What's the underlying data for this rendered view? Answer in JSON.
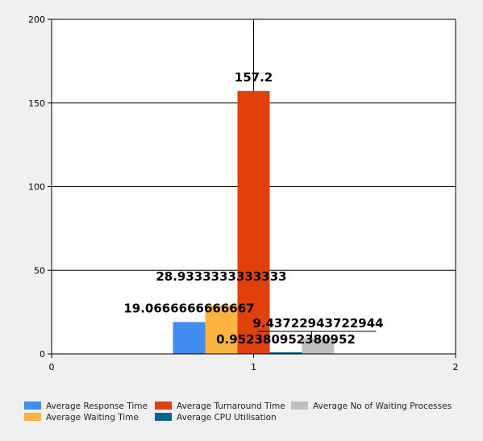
{
  "chart_data": {
    "type": "bar",
    "x_axis": {
      "min": 0,
      "max": 2,
      "ticks": [
        0,
        1,
        2
      ],
      "tick_labels": [
        "0",
        "1",
        "2"
      ]
    },
    "y_axis": {
      "min": 0,
      "max": 200,
      "ticks": [
        0,
        50,
        100,
        150,
        200
      ],
      "tick_labels": [
        "0",
        "50",
        "100",
        "150",
        "200"
      ]
    },
    "grid": true,
    "legend_position": "bottom",
    "group_x": 1,
    "series": [
      {
        "name": "Average Response Time",
        "value": 19.0666666666667,
        "label": "19.0666666666667",
        "color": "#418CF0"
      },
      {
        "name": "Average Waiting Time",
        "value": 28.9333333333333,
        "label": "28.9333333333333",
        "color": "#FCB441"
      },
      {
        "name": "Average Turnaround Time",
        "value": 157.2,
        "label": "157.2",
        "color": "#E0400A"
      },
      {
        "name": "Average CPU Utilisation",
        "value": 0.952380952380952,
        "label": "0.952380952380952",
        "color": "#056492"
      },
      {
        "name": "Average No of Waiting Processes",
        "value": 9.43722943722944,
        "label": "9.43722943722944",
        "color": "#BFBFBF"
      }
    ]
  }
}
